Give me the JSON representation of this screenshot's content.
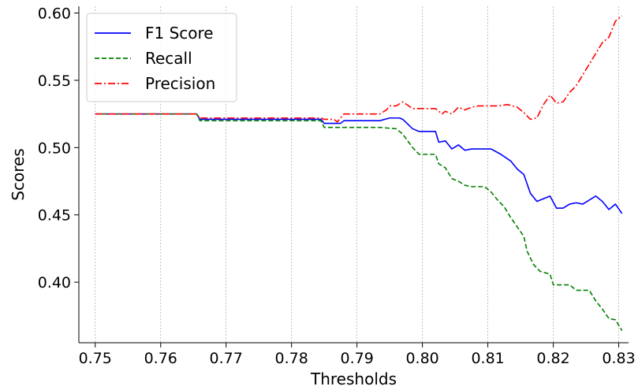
{
  "chart_data": {
    "type": "line",
    "title": "",
    "xlabel": "Thresholds",
    "ylabel": "Scores",
    "xlim": [
      0.7475,
      0.8315
    ],
    "ylim": [
      0.355,
      0.605
    ],
    "x_ticks": [
      0.75,
      0.76,
      0.77,
      0.78,
      0.79,
      0.8,
      0.81,
      0.82,
      0.83
    ],
    "x_tick_labels": [
      "0.75",
      "0.76",
      "0.77",
      "0.78",
      "0.79",
      "0.80",
      "0.81",
      "0.82",
      "0.83"
    ],
    "y_ticks": [
      0.4,
      0.45,
      0.5,
      0.55,
      0.6
    ],
    "y_tick_labels": [
      "0.40",
      "0.45",
      "0.50",
      "0.55",
      "0.60"
    ],
    "grid": "x-only dotted",
    "legend_position": "top-left",
    "series": [
      {
        "name": "F1 Score",
        "color": "#0000ff",
        "dash": "solid",
        "x": [
          0.75,
          0.7655,
          0.766,
          0.7845,
          0.785,
          0.7875,
          0.788,
          0.7935,
          0.795,
          0.7965,
          0.797,
          0.7985,
          0.7995,
          0.802,
          0.8025,
          0.8035,
          0.8045,
          0.8055,
          0.8065,
          0.8075,
          0.8085,
          0.8105,
          0.812,
          0.8135,
          0.8145,
          0.8155,
          0.8165,
          0.8175,
          0.8185,
          0.8195,
          0.8205,
          0.8215,
          0.8225,
          0.8235,
          0.8245,
          0.8255,
          0.8265,
          0.8275,
          0.8285,
          0.8295,
          0.8305
        ],
        "y": [
          0.525,
          0.525,
          0.521,
          0.521,
          0.518,
          0.518,
          0.52,
          0.52,
          0.522,
          0.522,
          0.521,
          0.514,
          0.512,
          0.512,
          0.504,
          0.505,
          0.499,
          0.502,
          0.498,
          0.499,
          0.499,
          0.499,
          0.495,
          0.49,
          0.484,
          0.48,
          0.466,
          0.46,
          0.462,
          0.464,
          0.455,
          0.455,
          0.458,
          0.459,
          0.458,
          0.461,
          0.464,
          0.46,
          0.454,
          0.458,
          0.451
        ]
      },
      {
        "name": "Recall",
        "color": "#008000",
        "dash": "dashed",
        "x": [
          0.75,
          0.7655,
          0.766,
          0.7845,
          0.785,
          0.7935,
          0.796,
          0.797,
          0.7985,
          0.7995,
          0.802,
          0.8025,
          0.8035,
          0.8045,
          0.8055,
          0.8065,
          0.8075,
          0.8095,
          0.8105,
          0.8115,
          0.8125,
          0.8135,
          0.8145,
          0.8155,
          0.816,
          0.817,
          0.818,
          0.8195,
          0.82,
          0.8225,
          0.8235,
          0.8255,
          0.8265,
          0.8275,
          0.8285,
          0.8295,
          0.8305
        ],
        "y": [
          0.525,
          0.525,
          0.52,
          0.52,
          0.515,
          0.515,
          0.514,
          0.51,
          0.5,
          0.495,
          0.495,
          0.488,
          0.485,
          0.477,
          0.475,
          0.472,
          0.471,
          0.471,
          0.467,
          0.461,
          0.456,
          0.448,
          0.441,
          0.434,
          0.423,
          0.413,
          0.408,
          0.406,
          0.398,
          0.398,
          0.394,
          0.394,
          0.386,
          0.38,
          0.373,
          0.372,
          0.364
        ]
      },
      {
        "name": "Precision",
        "color": "#ff0000",
        "dash": "dashdot",
        "x": [
          0.75,
          0.7655,
          0.766,
          0.7845,
          0.785,
          0.7865,
          0.787,
          0.788,
          0.7935,
          0.7945,
          0.795,
          0.796,
          0.797,
          0.7985,
          0.799,
          0.802,
          0.803,
          0.8035,
          0.8045,
          0.8055,
          0.8065,
          0.8075,
          0.8085,
          0.8095,
          0.8105,
          0.8115,
          0.813,
          0.8145,
          0.8155,
          0.8165,
          0.8175,
          0.8185,
          0.8195,
          0.8205,
          0.8215,
          0.8225,
          0.8235,
          0.8245,
          0.8255,
          0.8265,
          0.8275,
          0.8285,
          0.8295,
          0.8305
        ],
        "y": [
          0.525,
          0.525,
          0.522,
          0.522,
          0.521,
          0.521,
          0.519,
          0.525,
          0.525,
          0.528,
          0.531,
          0.531,
          0.534,
          0.529,
          0.529,
          0.529,
          0.525,
          0.527,
          0.525,
          0.53,
          0.528,
          0.53,
          0.531,
          0.531,
          0.531,
          0.531,
          0.532,
          0.53,
          0.526,
          0.521,
          0.522,
          0.532,
          0.539,
          0.533,
          0.534,
          0.541,
          0.546,
          0.554,
          0.562,
          0.57,
          0.578,
          0.582,
          0.594,
          0.598
        ]
      }
    ]
  }
}
